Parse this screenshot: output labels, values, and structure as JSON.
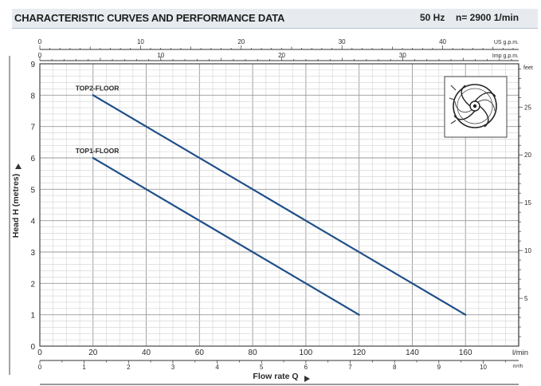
{
  "header": {
    "title": "CHARACTERISTIC CURVES AND PERFORMANCE DATA",
    "frequency": "50 Hz",
    "speed": "n= 2900  1/min"
  },
  "colors": {
    "curve": "#1f4f8a",
    "grid_major": "#9a9a9a",
    "grid_minor": "#d2d2d2",
    "axis": "#333333",
    "header_bg": "#e7ebef"
  },
  "icons": [
    "impeller-icon",
    "play-arrow-icon"
  ],
  "chart_data": {
    "type": "line",
    "xlabel": "Flow rate Q",
    "ylabel": "Head H (metres)",
    "primary_x": {
      "unit": "l/min",
      "range": [
        0,
        180
      ],
      "ticks": [
        "0",
        "20",
        "40",
        "60",
        "80",
        "100",
        "120",
        "140",
        "160"
      ]
    },
    "primary_y": {
      "unit": "m",
      "range": [
        0,
        9
      ],
      "ticks": [
        "0",
        "1",
        "2",
        "3",
        "4",
        "5",
        "6",
        "7",
        "8",
        "9"
      ]
    },
    "secondary_axes": {
      "bottom": {
        "unit": "m³/h",
        "ticks": [
          "0",
          "1",
          "2",
          "3",
          "4",
          "5",
          "6",
          "7",
          "8",
          "9",
          "10"
        ],
        "values": [
          0,
          1,
          2,
          3,
          4,
          5,
          6,
          7,
          8,
          9,
          10
        ]
      },
      "top_us": {
        "unit": "US g.p.m.",
        "ticks": [
          "0",
          "10",
          "20",
          "30",
          "40"
        ],
        "values": [
          0,
          10,
          20,
          30,
          40
        ]
      },
      "top_imp": {
        "unit": "Imp g.p.m.",
        "ticks": [
          "0",
          "10",
          "20",
          "30"
        ],
        "values": [
          0,
          10,
          20,
          30
        ]
      },
      "right": {
        "unit": "feet",
        "ticks": [
          "5",
          "10",
          "15",
          "20",
          "25"
        ],
        "values": [
          5,
          10,
          15,
          20,
          25
        ]
      }
    },
    "grid": true,
    "series": [
      {
        "name": "TOP2-FLOOR",
        "x": [
          20,
          160
        ],
        "y": [
          8,
          1
        ]
      },
      {
        "name": "TOP1-FLOOR",
        "x": [
          20,
          120
        ],
        "y": [
          6,
          1
        ]
      }
    ]
  }
}
